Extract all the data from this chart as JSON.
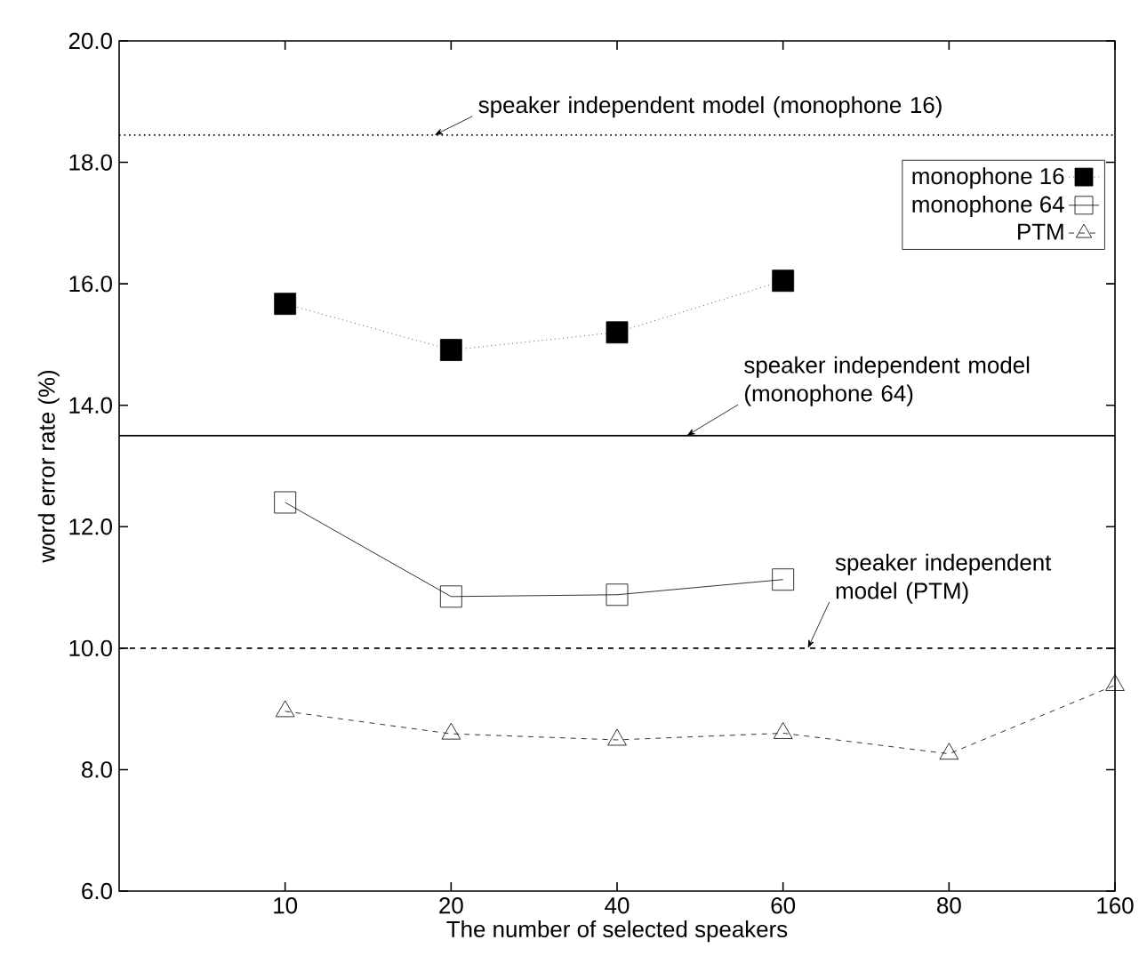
{
  "chart_data": {
    "type": "line",
    "xlabel": "The number of selected speakers",
    "ylabel": "word error rate (%)",
    "categories": [
      "10",
      "20",
      "40",
      "60",
      "80",
      "160"
    ],
    "series": [
      {
        "name": "monophone 16",
        "color": "#000000",
        "marker": "square",
        "line_style": "dotted",
        "values": [
          15.67,
          14.91,
          15.2,
          16.05,
          null,
          null
        ]
      },
      {
        "name": "monophone 64",
        "color": "#000000",
        "marker": "square",
        "line_style": "solid",
        "values": [
          12.4,
          10.85,
          10.88,
          11.13,
          null,
          null
        ]
      },
      {
        "name": "PTM",
        "color": "#000000",
        "marker": "triangle",
        "line_style": "dashed",
        "values": [
          8.96,
          8.59,
          8.49,
          8.6,
          8.26,
          9.39
        ]
      }
    ],
    "ylim": [
      6,
      20
    ],
    "yticks": [
      {
        "value": 6,
        "label": "6.0"
      },
      {
        "value": 8,
        "label": "8.0"
      },
      {
        "value": 10,
        "label": "10.0"
      },
      {
        "value": 12,
        "label": "12.0"
      },
      {
        "value": 14,
        "label": "14.0"
      },
      {
        "value": 16,
        "label": "16.0"
      },
      {
        "value": 18,
        "label": "18.0"
      },
      {
        "value": 20,
        "label": "20.0"
      }
    ],
    "ref_lines": [
      {
        "axis": "y",
        "value": 18.45,
        "label": "speaker independent model (monophone 16)",
        "line_style": "dotted",
        "color": "#000000"
      },
      {
        "axis": "y",
        "value": 13.5,
        "label": "speaker independent model (monophone 64)",
        "line_style": "solid",
        "color": "#000000"
      },
      {
        "axis": "y",
        "value": 10.0,
        "label": "speaker independent model (PTM)",
        "line_style": "dashed",
        "color": "#000000"
      }
    ],
    "legend": "top right",
    "grid": false
  }
}
